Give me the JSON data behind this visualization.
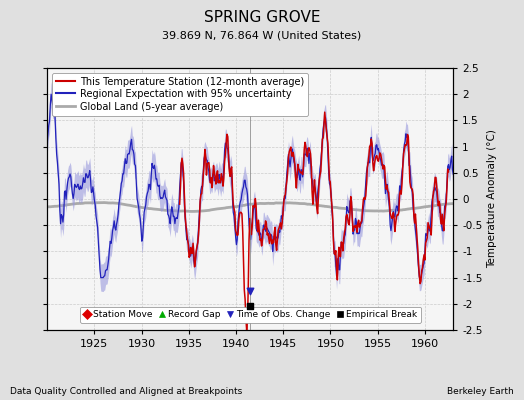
{
  "title": "SPRING GROVE",
  "subtitle": "39.869 N, 76.864 W (United States)",
  "ylabel": "Temperature Anomaly (°C)",
  "footer_left": "Data Quality Controlled and Aligned at Breakpoints",
  "footer_right": "Berkeley Earth",
  "xlim": [
    1920,
    1963
  ],
  "ylim": [
    -2.5,
    2.5
  ],
  "yticks": [
    -2.5,
    -2.0,
    -1.5,
    -1.0,
    -0.5,
    0.0,
    0.5,
    1.0,
    1.5,
    2.0,
    2.5
  ],
  "ytick_labels": [
    "-2.5",
    "-2",
    "-1.5",
    "-1",
    "-0.5",
    "0",
    "0.5",
    "1",
    "1.5",
    "2",
    "2.5"
  ],
  "xticks": [
    1925,
    1930,
    1935,
    1940,
    1945,
    1950,
    1955,
    1960
  ],
  "bg_color": "#e0e0e0",
  "plot_bg_color": "#f5f5f5",
  "regional_color": "#2222bb",
  "regional_fill_color": "#9999dd",
  "station_color": "#cc0000",
  "global_color": "#aaaaaa",
  "legend_entries": [
    "This Temperature Station (12-month average)",
    "Regional Expectation with 95% uncertainty",
    "Global Land (5-year average)"
  ],
  "marker_legend": [
    {
      "marker": "D",
      "color": "#dd0000",
      "label": "Station Move"
    },
    {
      "marker": "^",
      "color": "#00aa00",
      "label": "Record Gap"
    },
    {
      "marker": "v",
      "color": "#2222bb",
      "label": "Time of Obs. Change"
    },
    {
      "marker": "s",
      "color": "#000000",
      "label": "Empirical Break"
    }
  ],
  "empirical_break": {
    "year": 1941.5,
    "value": -2.05
  },
  "time_obs_change": {
    "year": 1941.5,
    "value": -1.75
  },
  "station_start_year": 1934.0,
  "station_end_year": 1962.5
}
